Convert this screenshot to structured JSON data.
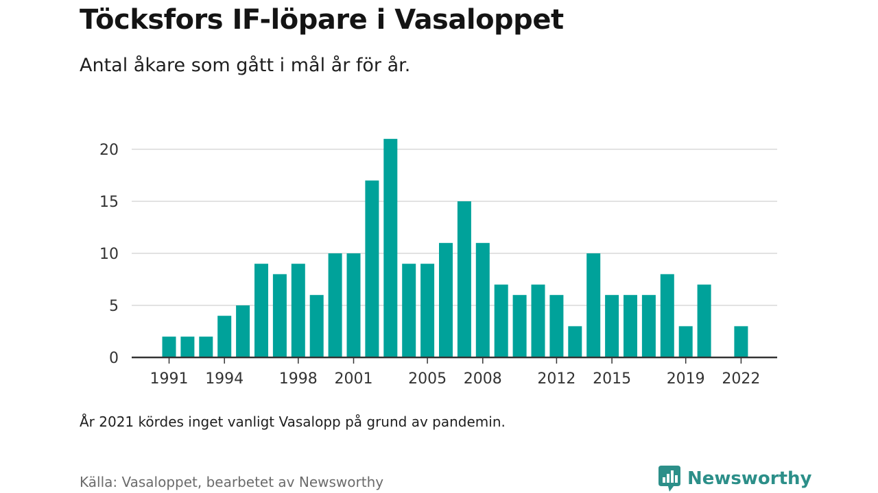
{
  "header": {
    "title": "Töcksfors IF-löpare i Vasaloppet",
    "subtitle": "Antal åkare som gått i mål år för år."
  },
  "footer": {
    "note": "År 2021 kördes inget vanligt Vasalopp på grund av pandemin.",
    "source": "Källa: Vasaloppet, bearbetet av Newsworthy",
    "brand": "Newsworthy"
  },
  "colors": {
    "bar": "#00a29a",
    "grid": "#d9d9d9",
    "axis": "#333333",
    "brand": "#2c8f89"
  },
  "icons": {
    "brand_logo": "bar-chart-speech-bubble-icon"
  },
  "chart_data": {
    "type": "bar",
    "title": "Töcksfors IF-löpare i Vasaloppet",
    "subtitle": "Antal åkare som gått i mål år för år.",
    "xlabel": "",
    "ylabel": "",
    "x": [
      1991,
      1992,
      1993,
      1994,
      1995,
      1996,
      1997,
      1998,
      1999,
      2000,
      2001,
      2002,
      2003,
      2004,
      2005,
      2006,
      2007,
      2008,
      2009,
      2010,
      2011,
      2012,
      2013,
      2014,
      2015,
      2016,
      2017,
      2018,
      2019,
      2020,
      2021,
      2022
    ],
    "values": [
      2,
      2,
      2,
      4,
      5,
      9,
      8,
      9,
      6,
      10,
      10,
      17,
      21,
      9,
      9,
      11,
      15,
      11,
      7,
      6,
      7,
      6,
      3,
      10,
      6,
      6,
      6,
      8,
      3,
      7,
      null,
      3
    ],
    "x_ticks": [
      1991,
      1994,
      1998,
      2001,
      2005,
      2008,
      2012,
      2015,
      2019,
      2022
    ],
    "y_ticks": [
      0,
      5,
      10,
      15,
      20
    ],
    "ylim": [
      0,
      21
    ],
    "grid": true,
    "legend": "none"
  }
}
